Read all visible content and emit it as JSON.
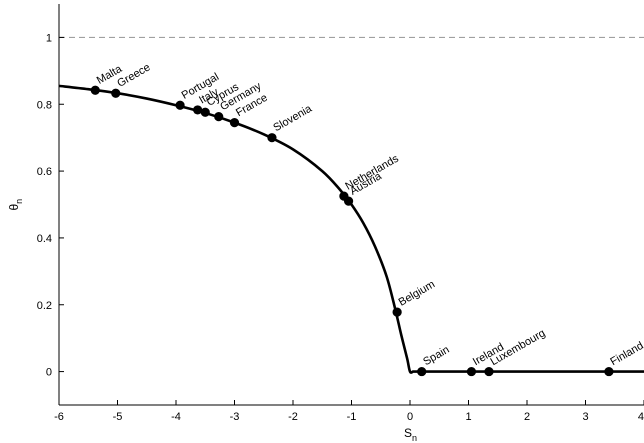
{
  "chart_data": {
    "type": "line",
    "xlabel": {
      "base": "S",
      "sub": "n"
    },
    "ylabel": {
      "base": "θ",
      "sub": "n"
    },
    "xlim": [
      -6,
      4
    ],
    "ylim": [
      -0.1,
      1.1
    ],
    "xticks": [
      -6,
      -5,
      -4,
      -3,
      -2,
      -1,
      0,
      1,
      2,
      3,
      4
    ],
    "xtick_labels": [
      "-6",
      "-5",
      "-4",
      "-3",
      "-2",
      "-1",
      "0",
      "1",
      "2",
      "3",
      "4"
    ],
    "yticks": [
      0,
      0.2,
      0.4,
      0.6,
      0.8,
      1
    ],
    "ytick_labels": [
      "0",
      "0.2",
      "0.4",
      "0.6",
      "0.8",
      "1"
    ],
    "grid": false,
    "reference_line": {
      "y": 1,
      "style": "dashed",
      "color": "#a0a0a0"
    },
    "curve_color": "#000000",
    "curve": {
      "x": [
        -6.0,
        -5.5,
        -5.0,
        -4.5,
        -4.0,
        -3.5,
        -3.0,
        -2.5,
        -2.0,
        -1.5,
        -1.2,
        -1.0,
        -0.8,
        -0.6,
        -0.4,
        -0.25,
        -0.15,
        -0.05,
        0.0,
        0.05,
        4.0
      ],
      "y": [
        0.855,
        0.845,
        0.833,
        0.817,
        0.797,
        0.774,
        0.745,
        0.71,
        0.665,
        0.6,
        0.545,
        0.5,
        0.445,
        0.375,
        0.285,
        0.185,
        0.11,
        0.04,
        0.0,
        0.0,
        0.0
      ]
    },
    "points": [
      {
        "label": "Malta",
        "x": -5.38,
        "y": 0.842
      },
      {
        "label": "Greece",
        "x": -5.03,
        "y": 0.833
      },
      {
        "label": "Portugal",
        "x": -3.93,
        "y": 0.797
      },
      {
        "label": "Italy",
        "x": -3.63,
        "y": 0.783
      },
      {
        "label": "Cyprus",
        "x": -3.5,
        "y": 0.776
      },
      {
        "label": "Germany",
        "x": -3.27,
        "y": 0.763
      },
      {
        "label": "France",
        "x": -3.0,
        "y": 0.745
      },
      {
        "label": "Slovenia",
        "x": -2.36,
        "y": 0.7
      },
      {
        "label": "Netherlands",
        "x": -1.13,
        "y": 0.525
      },
      {
        "label": "Austria",
        "x": -1.05,
        "y": 0.51
      },
      {
        "label": "Belgium",
        "x": -0.22,
        "y": 0.178
      },
      {
        "label": "Spain",
        "x": 0.2,
        "y": 0.0
      },
      {
        "label": "Ireland",
        "x": 1.05,
        "y": 0.0
      },
      {
        "label": "Luxembourg",
        "x": 1.35,
        "y": 0.0
      },
      {
        "label": "Finland",
        "x": 3.4,
        "y": 0.0
      }
    ]
  }
}
